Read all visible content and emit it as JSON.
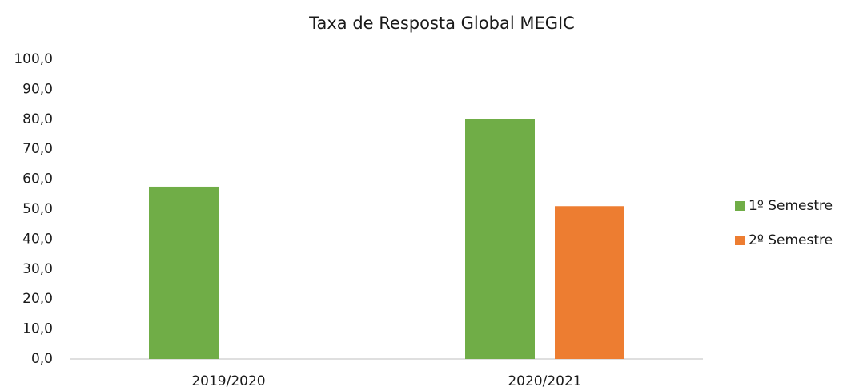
{
  "chart_data": {
    "type": "bar",
    "title": "Taxa de Resposta Global MEGIC",
    "categories": [
      "2019/2020",
      "2020/2021"
    ],
    "series": [
      {
        "name": "1º Semestre",
        "color": "#70ad47",
        "values": [
          57.5,
          80.0
        ]
      },
      {
        "name": "2º Semestre",
        "color": "#ed7d31",
        "values": [
          null,
          51.0
        ]
      }
    ],
    "ylim": [
      0,
      100
    ],
    "yticks": [
      {
        "value": 0,
        "label": "0,0"
      },
      {
        "value": 10,
        "label": "10,0"
      },
      {
        "value": 20,
        "label": "20,0"
      },
      {
        "value": 30,
        "label": "30,0"
      },
      {
        "value": 40,
        "label": "40,0"
      },
      {
        "value": 50,
        "label": "50,0"
      },
      {
        "value": 60,
        "label": "60,0"
      },
      {
        "value": 70,
        "label": "70,0"
      },
      {
        "value": 80,
        "label": "80,0"
      },
      {
        "value": 90,
        "label": "90,0"
      },
      {
        "value": 100,
        "label": "100,0"
      }
    ],
    "grid": false,
    "legend": "right"
  }
}
